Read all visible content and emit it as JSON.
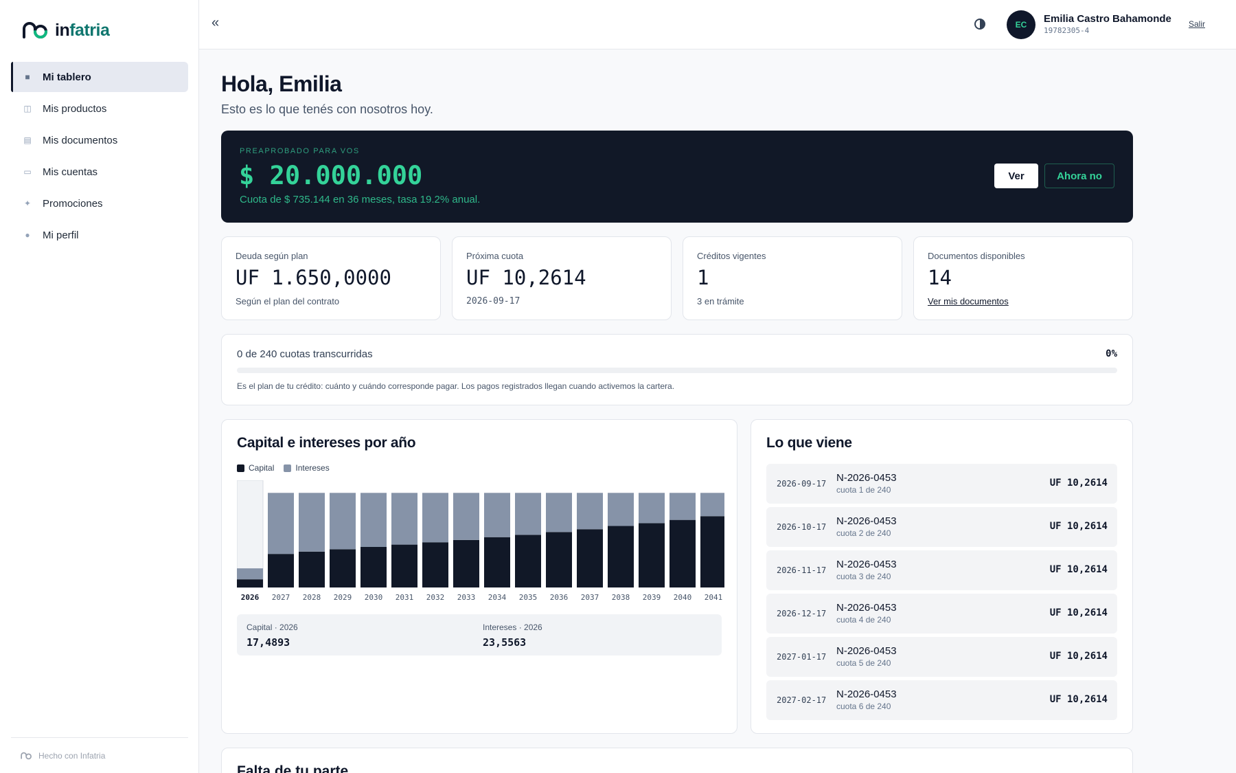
{
  "brand": {
    "logo_text_main": "in",
    "logo_text_accent": "fatria",
    "footer": "Hecho con Infatria",
    "accent_color": "#34d399"
  },
  "sidebar": {
    "items": [
      {
        "label": "Mi tablero",
        "icon": "dashboard-icon",
        "glyph": "■",
        "active": true
      },
      {
        "label": "Mis productos",
        "icon": "products-icon",
        "glyph": "◫",
        "active": false
      },
      {
        "label": "Mis documentos",
        "icon": "documents-icon",
        "glyph": "▤",
        "active": false
      },
      {
        "label": "Mis cuentas",
        "icon": "accounts-icon",
        "glyph": "▭",
        "active": false
      },
      {
        "label": "Promociones",
        "icon": "sparkle-icon",
        "glyph": "✦",
        "active": false
      },
      {
        "label": "Mi perfil",
        "icon": "profile-icon",
        "glyph": "●",
        "active": false
      }
    ]
  },
  "topbar": {
    "collapse_glyph": "«",
    "avatar_initials": "EC",
    "user_name": "Emilia Castro Bahamonde",
    "user_id": "19782305-4",
    "logout": "Salir"
  },
  "main": {
    "greeting": "Hola, Emilia",
    "subtitle": "Esto es lo que tenés con nosotros hoy."
  },
  "promo": {
    "label": "PREAPROBADO PARA VOS",
    "amount": "$ 20.000.000",
    "terms": "Cuota de $ 735.144 en 36 meses, tasa 19.2% anual.",
    "primary_button": "Ver",
    "secondary_button": "Ahora no"
  },
  "stats": [
    {
      "label": "Deuda según plan",
      "value": "UF 1.650,0000",
      "sub": "Según el plan del contrato"
    },
    {
      "label": "Próxima cuota",
      "value": "UF 10,2614",
      "sub": "2026-09-17"
    },
    {
      "label": "Créditos vigentes",
      "value": "1",
      "sub": "3 en trámite"
    },
    {
      "label": "Documentos disponibles",
      "value": "14",
      "sub": "Ver mis documentos"
    }
  ],
  "progress": {
    "text": "0 de 240 cuotas transcurridas",
    "percent_label": "0%",
    "fraction": 0,
    "note": "Es el plan de tu crédito: cuánto y cuándo corresponde pagar. Los pagos registrados llegan cuando activemos la cartera."
  },
  "chart_section": {
    "title": "Capital e intereses por año",
    "summary": {
      "capital_label": "Capital · 2026",
      "capital_value": "17,4893",
      "interest_label": "Intereses · 2026",
      "interest_value": "23,5563"
    }
  },
  "chart_data": {
    "type": "bar",
    "stacked": true,
    "categories": [
      "2026",
      "2027",
      "2028",
      "2029",
      "2030",
      "2031",
      "2032",
      "2033",
      "2034",
      "2035",
      "2036",
      "2037",
      "2038",
      "2039",
      "2040",
      "2041"
    ],
    "selected": "2026",
    "series": [
      {
        "name": "Capital",
        "color": "#111827",
        "values": [
          17.4893,
          72,
          77,
          82,
          87,
          92,
          97,
          102,
          108,
          113,
          119,
          125,
          132,
          138,
          145,
          153
        ]
      },
      {
        "name": "Intereses",
        "color": "#8693a8",
        "values": [
          23.5563,
          131,
          126,
          121,
          116,
          111,
          106,
          101,
          95,
          90,
          84,
          78,
          71,
          65,
          58,
          50
        ]
      }
    ],
    "ylim": [
      0,
      230
    ]
  },
  "upcoming": {
    "title": "Lo que viene",
    "items": [
      {
        "date": "2026-09-17",
        "id": "N-2026-0453",
        "quota": "cuota 1 de 240",
        "amount": "UF 10,2614"
      },
      {
        "date": "2026-10-17",
        "id": "N-2026-0453",
        "quota": "cuota 2 de 240",
        "amount": "UF 10,2614"
      },
      {
        "date": "2026-11-17",
        "id": "N-2026-0453",
        "quota": "cuota 3 de 240",
        "amount": "UF 10,2614"
      },
      {
        "date": "2026-12-17",
        "id": "N-2026-0453",
        "quota": "cuota 4 de 240",
        "amount": "UF 10,2614"
      },
      {
        "date": "2027-01-17",
        "id": "N-2026-0453",
        "quota": "cuota 5 de 240",
        "amount": "UF 10,2614"
      },
      {
        "date": "2027-02-17",
        "id": "N-2026-0453",
        "quota": "cuota 6 de 240",
        "amount": "UF 10,2614"
      }
    ]
  },
  "pending_section": {
    "title": "Falta de tu parte"
  }
}
